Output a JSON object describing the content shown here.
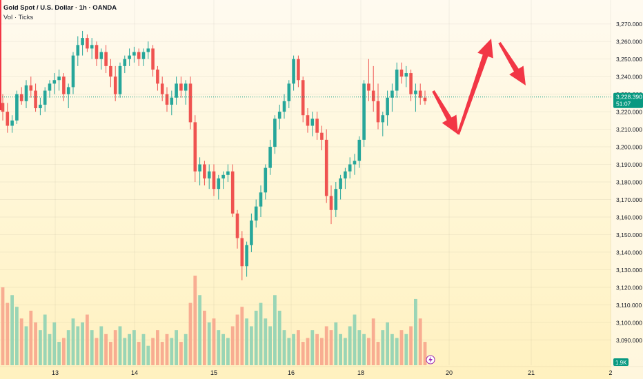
{
  "header": {
    "title": "Gold Spot / U.S. Dollar · 1h · OANDA",
    "volume_label": "Vol · Ticks"
  },
  "price_axis": {
    "ticks": [
      "3,270.000",
      "3,260.000",
      "3,250.000",
      "3,240.000",
      "3,230.000",
      "3,220.000",
      "3,210.000",
      "3,200.000",
      "3,190.000",
      "3,180.000",
      "3,170.000",
      "3,160.000",
      "3,150.000",
      "3,140.000",
      "3,130.000",
      "3,120.000",
      "3,110.000",
      "3,100.000",
      "3,090.000"
    ],
    "current_price": "3,228.390",
    "countdown": "51:07",
    "volume_badge": "1.9K"
  },
  "time_axis": {
    "labels": [
      "13",
      "14",
      "15",
      "16",
      "18",
      "20",
      "21",
      "2"
    ]
  },
  "colors": {
    "up": "#26a69a",
    "down": "#ef5350",
    "arrow": "#f23645",
    "price_badge": "#089981",
    "volume_up": "#8fd1b4",
    "volume_down": "#f7a58c"
  },
  "chart_data": {
    "type": "candlestick",
    "symbol": "Gold Spot / U.S. Dollar",
    "interval": "1h",
    "ylim": [
      3085,
      3275
    ],
    "candles": [
      [
        3225,
        3230,
        3215,
        3220
      ],
      [
        3220,
        3225,
        3208,
        3212
      ],
      [
        3212,
        3218,
        3208,
        3215
      ],
      [
        3215,
        3232,
        3213,
        3230
      ],
      [
        3230,
        3234,
        3224,
        3226
      ],
      [
        3226,
        3238,
        3222,
        3235
      ],
      [
        3235,
        3240,
        3228,
        3232
      ],
      [
        3232,
        3236,
        3220,
        3222
      ],
      [
        3222,
        3228,
        3218,
        3224
      ],
      [
        3224,
        3234,
        3220,
        3232
      ],
      [
        3232,
        3238,
        3228,
        3236
      ],
      [
        3236,
        3242,
        3230,
        3238
      ],
      [
        3238,
        3244,
        3232,
        3240
      ],
      [
        3240,
        3242,
        3226,
        3230
      ],
      [
        3230,
        3236,
        3222,
        3234
      ],
      [
        3234,
        3254,
        3230,
        3252
      ],
      [
        3252,
        3263,
        3246,
        3258
      ],
      [
        3258,
        3266,
        3252,
        3262
      ],
      [
        3262,
        3264,
        3254,
        3256
      ],
      [
        3256,
        3262,
        3250,
        3258
      ],
      [
        3258,
        3260,
        3246,
        3250
      ],
      [
        3250,
        3256,
        3244,
        3254
      ],
      [
        3254,
        3258,
        3242,
        3246
      ],
      [
        3246,
        3250,
        3234,
        3240
      ],
      [
        3240,
        3246,
        3226,
        3230
      ],
      [
        3230,
        3248,
        3228,
        3246
      ],
      [
        3246,
        3252,
        3242,
        3250
      ],
      [
        3250,
        3256,
        3246,
        3252
      ],
      [
        3252,
        3257,
        3248,
        3254
      ],
      [
        3254,
        3256,
        3246,
        3250
      ],
      [
        3250,
        3256,
        3246,
        3254
      ],
      [
        3254,
        3260,
        3250,
        3256
      ],
      [
        3256,
        3258,
        3240,
        3244
      ],
      [
        3244,
        3246,
        3232,
        3236
      ],
      [
        3236,
        3240,
        3226,
        3230
      ],
      [
        3230,
        3234,
        3220,
        3224
      ],
      [
        3224,
        3232,
        3218,
        3228
      ],
      [
        3228,
        3240,
        3224,
        3236
      ],
      [
        3236,
        3240,
        3228,
        3232
      ],
      [
        3232,
        3238,
        3224,
        3236
      ],
      [
        3236,
        3240,
        3210,
        3214
      ],
      [
        3214,
        3218,
        3180,
        3186
      ],
      [
        3186,
        3194,
        3178,
        3190
      ],
      [
        3190,
        3192,
        3178,
        3182
      ],
      [
        3182,
        3190,
        3176,
        3186
      ],
      [
        3186,
        3190,
        3172,
        3176
      ],
      [
        3176,
        3184,
        3170,
        3182
      ],
      [
        3182,
        3186,
        3176,
        3184
      ],
      [
        3184,
        3190,
        3180,
        3186
      ],
      [
        3186,
        3190,
        3160,
        3162
      ],
      [
        3162,
        3164,
        3142,
        3148
      ],
      [
        3148,
        3152,
        3124,
        3132
      ],
      [
        3132,
        3146,
        3126,
        3144
      ],
      [
        3144,
        3162,
        3140,
        3158
      ],
      [
        3158,
        3170,
        3154,
        3166
      ],
      [
        3166,
        3178,
        3160,
        3174
      ],
      [
        3174,
        3190,
        3170,
        3188
      ],
      [
        3188,
        3204,
        3184,
        3200
      ],
      [
        3200,
        3218,
        3196,
        3216
      ],
      [
        3216,
        3224,
        3210,
        3220
      ],
      [
        3220,
        3230,
        3216,
        3226
      ],
      [
        3226,
        3238,
        3222,
        3236
      ],
      [
        3236,
        3252,
        3232,
        3250
      ],
      [
        3250,
        3252,
        3234,
        3238
      ],
      [
        3238,
        3240,
        3214,
        3218
      ],
      [
        3218,
        3222,
        3208,
        3212
      ],
      [
        3212,
        3220,
        3206,
        3216
      ],
      [
        3216,
        3220,
        3204,
        3208
      ],
      [
        3208,
        3212,
        3198,
        3204
      ],
      [
        3204,
        3210,
        3168,
        3172
      ],
      [
        3172,
        3178,
        3156,
        3164
      ],
      [
        3164,
        3180,
        3160,
        3176
      ],
      [
        3176,
        3184,
        3170,
        3182
      ],
      [
        3182,
        3188,
        3176,
        3186
      ],
      [
        3186,
        3194,
        3182,
        3190
      ],
      [
        3190,
        3196,
        3184,
        3192
      ],
      [
        3192,
        3206,
        3188,
        3204
      ],
      [
        3204,
        3238,
        3200,
        3236
      ],
      [
        3236,
        3250,
        3226,
        3232
      ],
      [
        3232,
        3246,
        3220,
        3226
      ],
      [
        3226,
        3236,
        3210,
        3214
      ],
      [
        3214,
        3220,
        3206,
        3218
      ],
      [
        3218,
        3232,
        3212,
        3228
      ],
      [
        3228,
        3236,
        3220,
        3232
      ],
      [
        3232,
        3248,
        3228,
        3244
      ],
      [
        3244,
        3248,
        3236,
        3240
      ],
      [
        3240,
        3246,
        3234,
        3242
      ],
      [
        3242,
        3244,
        3226,
        3230
      ],
      [
        3230,
        3236,
        3220,
        3232
      ],
      [
        3232,
        3236,
        3224,
        3228
      ],
      [
        3228,
        3232,
        3224,
        3226
      ]
    ],
    "volume": [
      2.0,
      1.6,
      1.8,
      1.5,
      1.2,
      1.0,
      1.4,
      1.1,
      0.9,
      1.3,
      0.8,
      1.1,
      0.6,
      0.7,
      0.9,
      1.2,
      1.0,
      1.1,
      1.3,
      0.9,
      0.7,
      1.0,
      0.8,
      0.6,
      0.9,
      1.0,
      0.7,
      0.8,
      0.9,
      0.6,
      0.8,
      0.5,
      0.7,
      0.9,
      0.6,
      0.8,
      0.7,
      0.9,
      0.6,
      0.8,
      1.6,
      2.3,
      1.8,
      1.4,
      1.1,
      1.2,
      0.9,
      0.8,
      0.7,
      1.0,
      1.3,
      1.5,
      1.2,
      1.0,
      1.4,
      1.6,
      1.2,
      1.0,
      1.8,
      1.4,
      0.9,
      0.7,
      0.8,
      0.9,
      0.6,
      0.7,
      0.9,
      0.8,
      0.7,
      1.0,
      0.9,
      1.1,
      0.8,
      0.7,
      1.0,
      1.3,
      0.9,
      0.8,
      0.7,
      1.2,
      0.6,
      0.9,
      1.1,
      0.8,
      0.7,
      0.9,
      0.8,
      1.0,
      1.7,
      1.2,
      0.6
    ],
    "current_price": 3228.39,
    "projection_arrows": [
      {
        "from": [
          3228,
          3222
        ],
        "to": [
          3208,
          3208
        ]
      },
      {
        "from": [
          3208,
          3208
        ],
        "to": [
          3261,
          3261
        ]
      },
      {
        "from": [
          3258,
          3258
        ],
        "to": [
          3230,
          3230
        ]
      }
    ]
  }
}
